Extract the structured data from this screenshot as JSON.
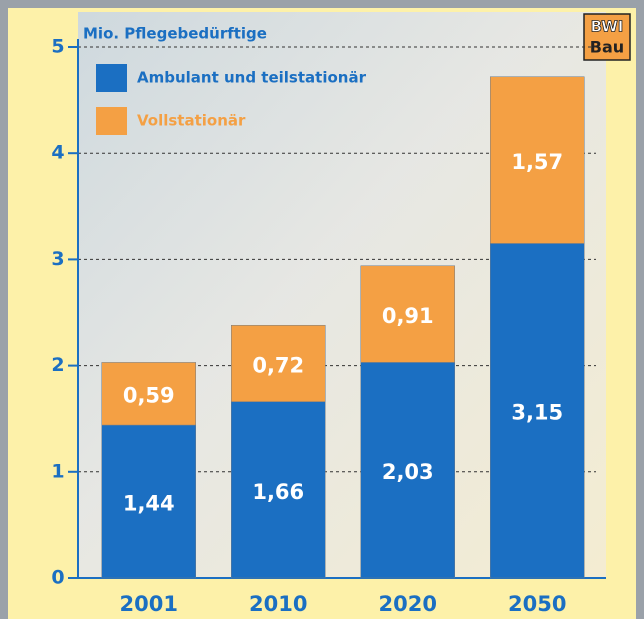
{
  "chart_data": {
    "type": "stacked-bar",
    "title": "Mio. Pflegebedürftige",
    "categories": [
      "2001",
      "2010",
      "2020",
      "2050"
    ],
    "series": [
      {
        "name": "Ambulant und teilstationär",
        "color": "#1b6fc2",
        "values": [
          1.44,
          1.66,
          2.03,
          3.15
        ],
        "value_labels": [
          "1,44",
          "1,66",
          "2,03",
          "3,15"
        ]
      },
      {
        "name": "Vollstationär",
        "color": "#f4a044",
        "values": [
          0.59,
          0.72,
          0.91,
          1.57
        ],
        "value_labels": [
          "0,59",
          "0,72",
          "0,91",
          "1,57"
        ]
      }
    ],
    "ylim": [
      0,
      5
    ],
    "yticks": [
      0,
      1,
      2,
      3,
      4,
      5
    ],
    "grid": true
  },
  "logo": {
    "top": "BWI",
    "bottom": "Bau"
  }
}
